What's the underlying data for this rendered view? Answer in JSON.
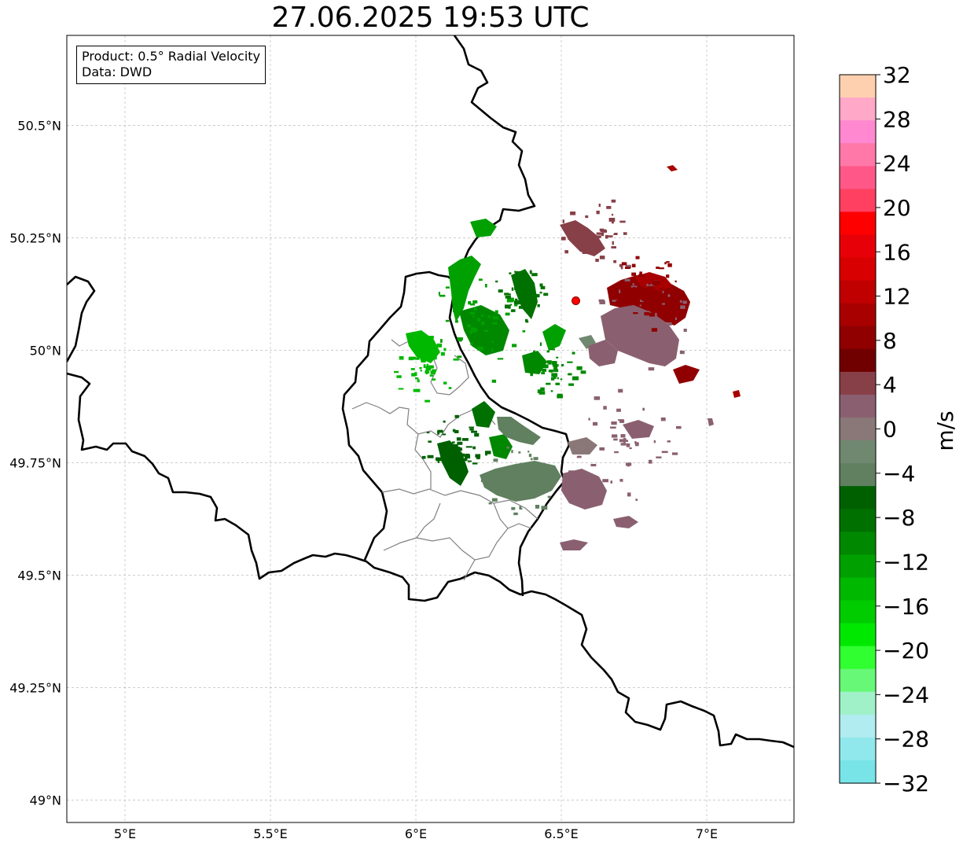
{
  "title": "27.06.2025 19:53 UTC",
  "info": {
    "product": "Product: 0.5° Radial Velocity",
    "source": "Data: DWD"
  },
  "axes": {
    "x_ticks": [
      "5°E",
      "5.5°E",
      "6°E",
      "6.5°E",
      "7°E"
    ],
    "y_ticks": [
      "50.5°N",
      "50.25°N",
      "50°N",
      "49.75°N",
      "49.5°N",
      "49.25°N",
      "49°N"
    ],
    "lon_range": [
      4.8,
      7.3
    ],
    "lat_range": [
      48.95,
      50.7
    ],
    "grid": true
  },
  "radar_site": {
    "lon": 6.55,
    "lat": 50.11,
    "color": "#ff0000"
  },
  "colorbar": {
    "label": "m/s",
    "min": -32,
    "max": 32,
    "step": 4,
    "tick_labels": [
      "32",
      "28",
      "24",
      "20",
      "16",
      "12",
      "8",
      "4",
      "0",
      "−4",
      "−8",
      "−12",
      "−16",
      "−20",
      "−24",
      "−28",
      "−32"
    ],
    "colors_top_to_bottom": [
      "#ffd0b0",
      "#ffa8c8",
      "#ff88d0",
      "#ff78a8",
      "#ff5888",
      "#ff4060",
      "#ff0000",
      "#e80008",
      "#d80000",
      "#c00000",
      "#a80000",
      "#900000",
      "#700000",
      "#884048",
      "#8a6070",
      "#8a7878",
      "#708870",
      "#608060",
      "#006000",
      "#007000",
      "#008800",
      "#00a000",
      "#00b800",
      "#00cc00",
      "#00e800",
      "#30ff30",
      "#68f878",
      "#a0f0c8",
      "#b0ecf0",
      "#90e8ec",
      "#78e4e8"
    ]
  }
}
